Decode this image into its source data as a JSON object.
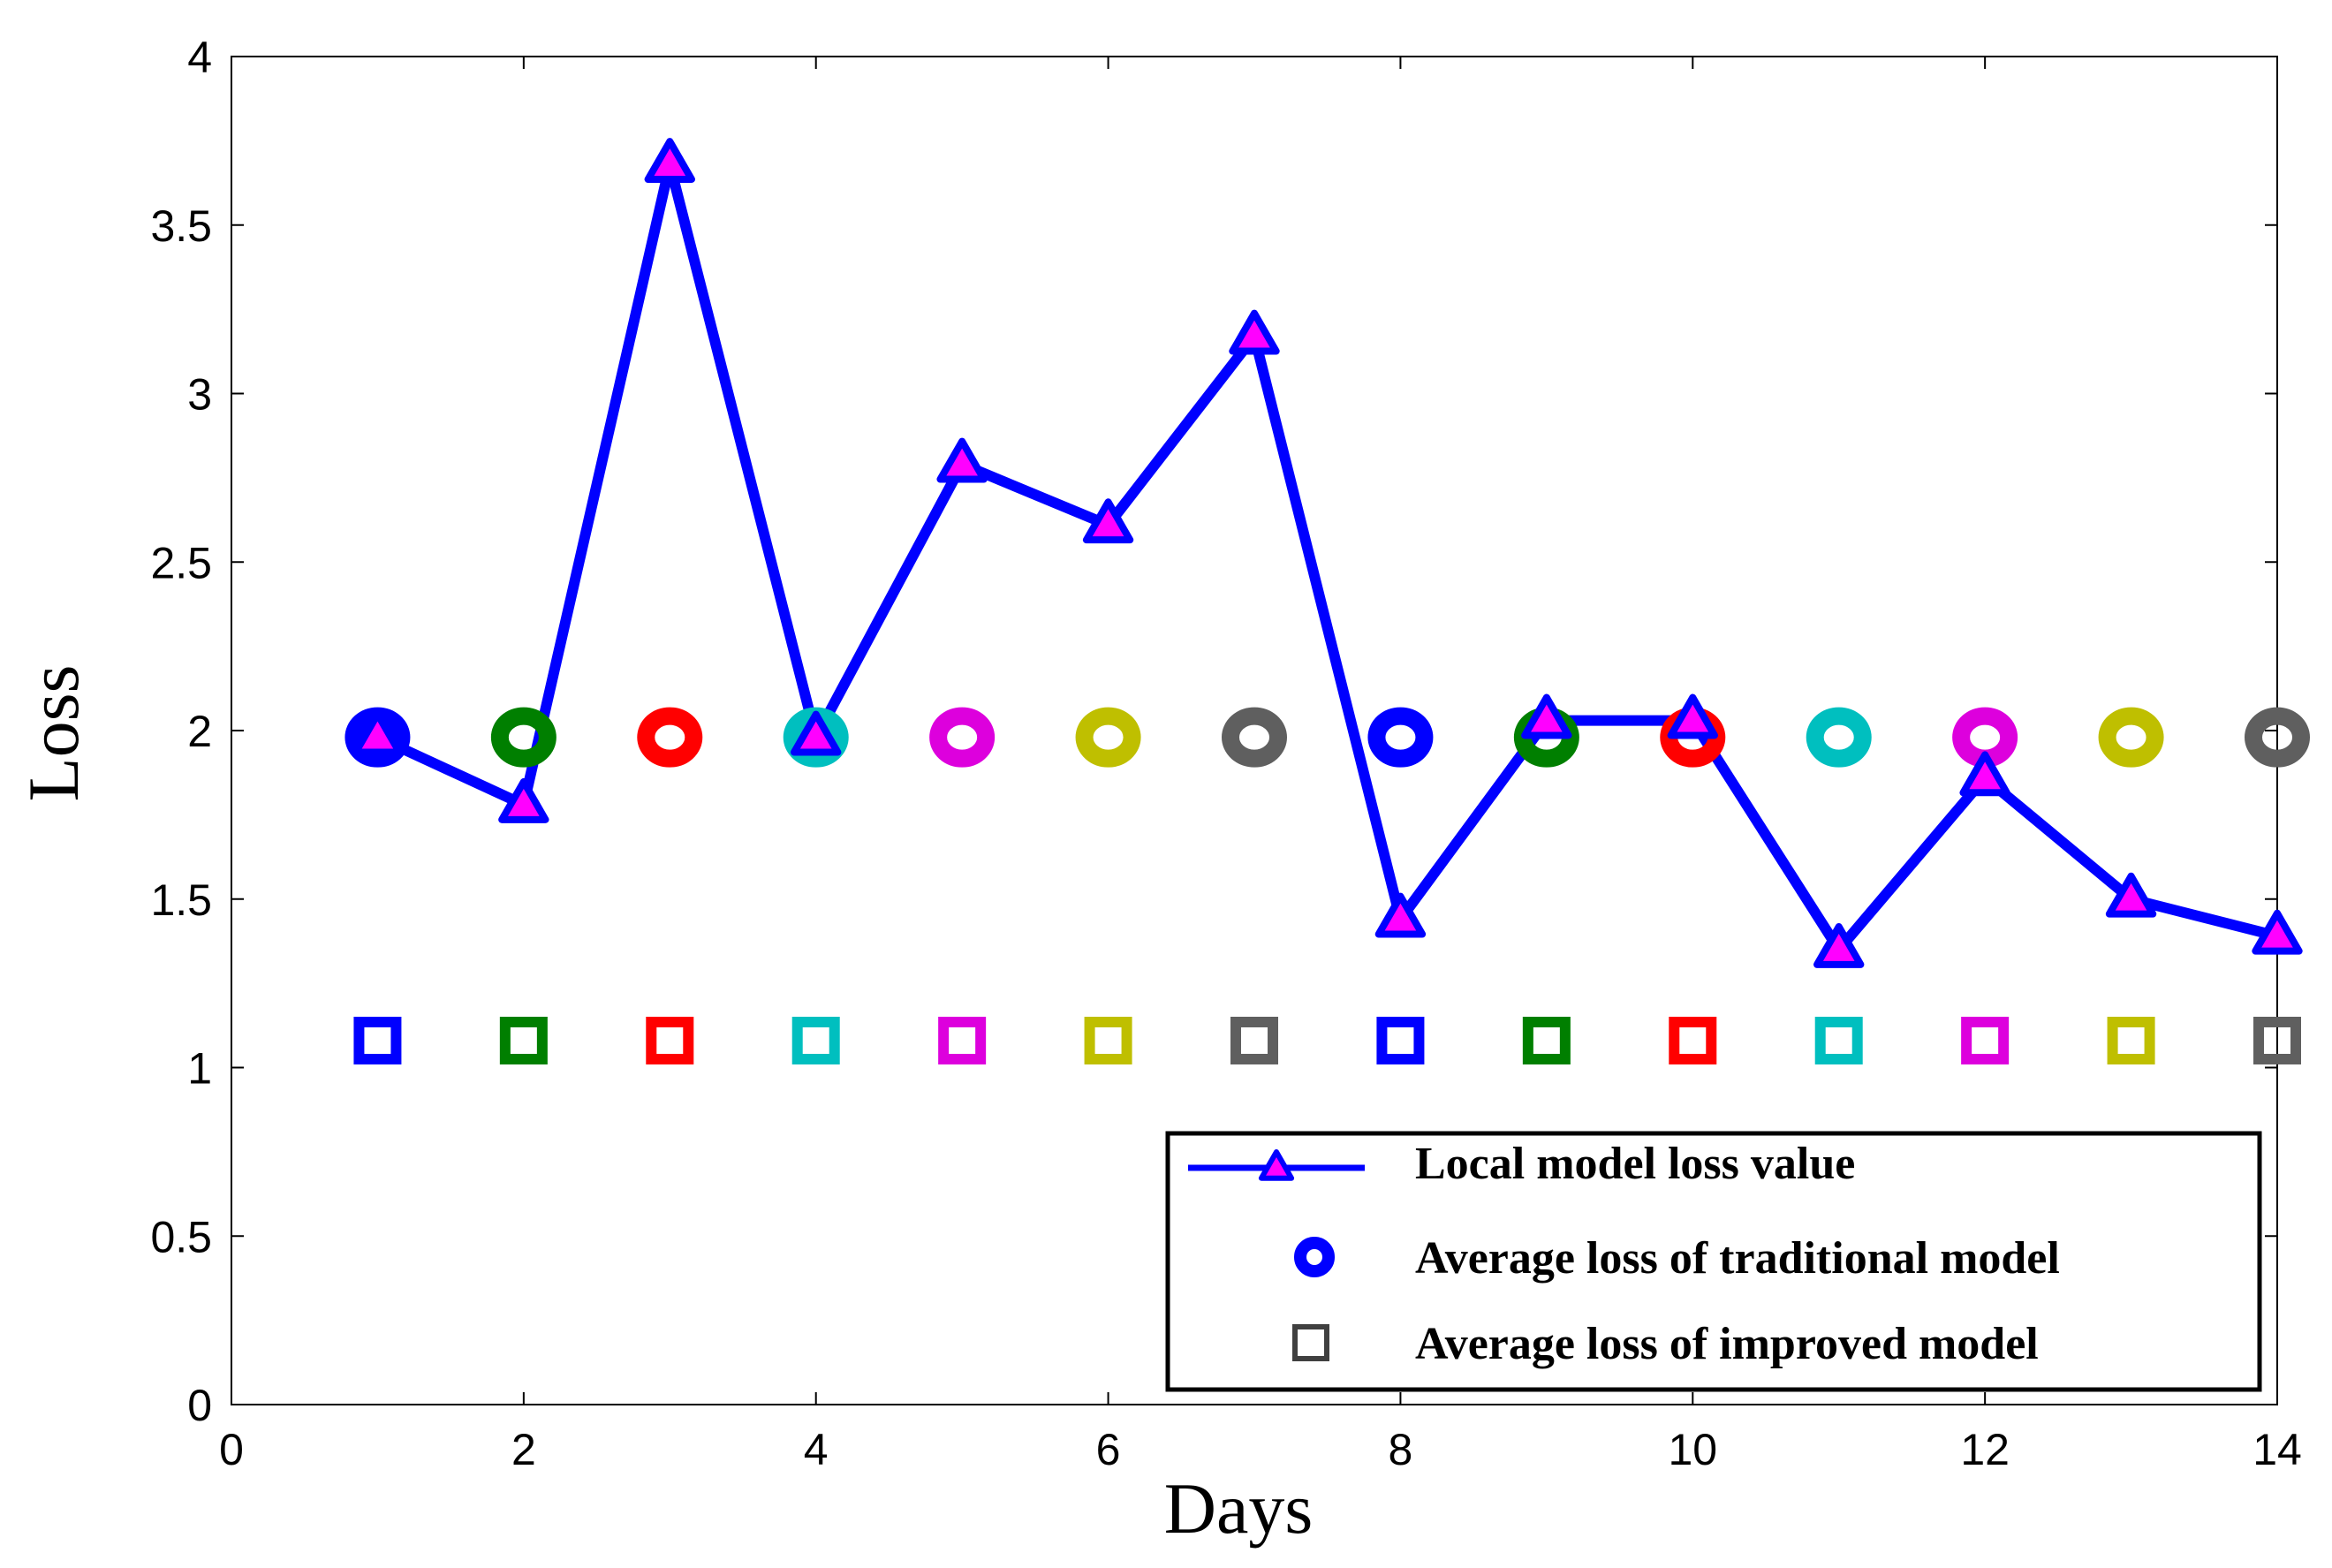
{
  "chart_data": {
    "type": "line",
    "xlabel": "Days",
    "ylabel": "Loss",
    "xlim": [
      0,
      14
    ],
    "ylim": [
      0,
      4
    ],
    "xticks": [
      0,
      2,
      4,
      6,
      8,
      10,
      12,
      14
    ],
    "xtick_labels": [
      "0",
      "2",
      "4",
      "6",
      "8",
      "10",
      "12",
      "14"
    ],
    "yticks": [
      0,
      0.5,
      1,
      1.5,
      2,
      2.5,
      3,
      3.5,
      4
    ],
    "ytick_labels": [
      "0",
      "0.5",
      "1",
      "1.5",
      "2",
      "2.5",
      "3",
      "3.5",
      "4"
    ],
    "grid": false,
    "legend_position": "bottom-right",
    "x": [
      1,
      2,
      3,
      4,
      5,
      6,
      7,
      8,
      9,
      10,
      11,
      12,
      13,
      14
    ],
    "marker_colors": [
      "#0000ff",
      "#007f00",
      "#ff0000",
      "#00bfbf",
      "#dd00dd",
      "#bfbf00",
      "#5f5f5f",
      "#0000ff",
      "#007f00",
      "#ff0000",
      "#00bfbf",
      "#dd00dd",
      "#bfbf00",
      "#5f5f5f"
    ],
    "series": [
      {
        "name": "Local model loss value",
        "marker": "triangle",
        "line_color": "#0000ff",
        "marker_fill": "#ff00ff",
        "values": [
          1.98,
          1.78,
          3.68,
          1.98,
          2.79,
          2.61,
          3.17,
          1.44,
          2.03,
          2.03,
          1.35,
          1.86,
          1.5,
          1.39
        ]
      },
      {
        "name": "Average loss of traditional model",
        "marker": "circle",
        "values": [
          1.98,
          1.98,
          1.98,
          1.98,
          1.98,
          1.98,
          1.98,
          1.98,
          1.98,
          1.98,
          1.98,
          1.98,
          1.98,
          1.98
        ]
      },
      {
        "name": "Average loss of improved model",
        "marker": "square",
        "values": [
          1.08,
          1.08,
          1.08,
          1.08,
          1.08,
          1.08,
          1.08,
          1.08,
          1.08,
          1.08,
          1.08,
          1.08,
          1.08,
          1.08
        ]
      }
    ],
    "legend": {
      "line_label": "Local model loss value",
      "circle_label": "Average loss of traditional model",
      "square_label": "Average loss of improved model",
      "line_color": "#0000ff",
      "circle_color": "#0000ff",
      "square_color": "#404040"
    }
  }
}
